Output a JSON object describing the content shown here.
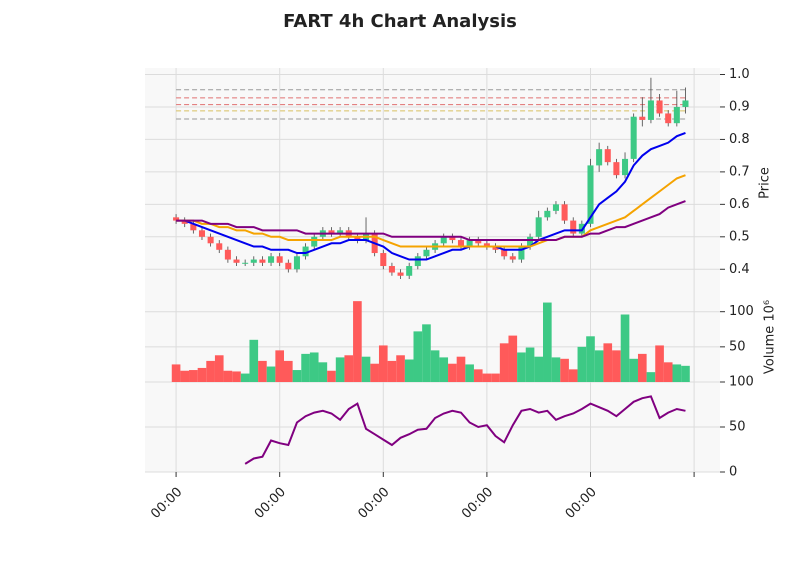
{
  "chart_data": {
    "type": "candlestick",
    "title": "FART 4h Chart Analysis",
    "xticks": [
      {
        "value": 0,
        "label": "00:00"
      },
      {
        "value": 12,
        "label": "00:00"
      },
      {
        "value": 24,
        "label": "00:00"
      },
      {
        "value": 36,
        "label": "00:00"
      },
      {
        "value": 48,
        "label": "00:00"
      },
      {
        "value": 60,
        "label": null
      }
    ],
    "xlim": [
      -3.6,
      63
    ],
    "ylabel": "Price",
    "ylim": [
      0.33,
      1.02
    ],
    "yticks": [
      0.4,
      0.5,
      0.6,
      0.7,
      0.8,
      0.9,
      {
        "value": 1,
        "label": "1.0"
      }
    ],
    "grid": true,
    "up_color": "#3dc985",
    "down_color": "#ff5a5a",
    "open": [
      0.56,
      0.55,
      0.54,
      0.52,
      0.5,
      0.48,
      0.46,
      0.43,
      0.42,
      0.42,
      0.43,
      0.42,
      0.44,
      0.42,
      0.4,
      0.44,
      0.47,
      0.5,
      0.52,
      0.51,
      0.52,
      0.5,
      0.49,
      0.51,
      0.45,
      0.41,
      0.39,
      0.38,
      0.41,
      0.44,
      0.46,
      0.48,
      0.5,
      0.49,
      0.47,
      0.49,
      0.48,
      0.47,
      0.46,
      0.44,
      0.43,
      0.47,
      0.5,
      0.56,
      0.58,
      0.6,
      0.55,
      0.51,
      0.54,
      0.72,
      0.77,
      0.73,
      0.69,
      0.74,
      0.87,
      0.86,
      0.92,
      0.88,
      0.85,
      0.9
    ],
    "high": [
      0.57,
      0.56,
      0.55,
      0.53,
      0.51,
      0.49,
      0.47,
      0.44,
      0.43,
      0.44,
      0.44,
      0.45,
      0.45,
      0.43,
      0.45,
      0.48,
      0.51,
      0.53,
      0.53,
      0.53,
      0.53,
      0.51,
      0.56,
      0.52,
      0.46,
      0.42,
      0.4,
      0.42,
      0.45,
      0.47,
      0.49,
      0.51,
      0.51,
      0.5,
      0.5,
      0.5,
      0.49,
      0.48,
      0.47,
      0.45,
      0.48,
      0.51,
      0.58,
      0.59,
      0.61,
      0.61,
      0.56,
      0.55,
      0.74,
      0.79,
      0.78,
      0.74,
      0.76,
      0.88,
      0.93,
      0.99,
      0.94,
      0.89,
      0.95,
      0.96
    ],
    "low": [
      0.54,
      0.53,
      0.51,
      0.49,
      0.47,
      0.45,
      0.42,
      0.41,
      0.41,
      0.41,
      0.41,
      0.41,
      0.41,
      0.39,
      0.39,
      0.43,
      0.46,
      0.49,
      0.5,
      0.5,
      0.49,
      0.48,
      0.48,
      0.44,
      0.4,
      0.38,
      0.37,
      0.37,
      0.4,
      0.43,
      0.45,
      0.47,
      0.48,
      0.46,
      0.46,
      0.47,
      0.46,
      0.45,
      0.43,
      0.42,
      0.42,
      0.46,
      0.49,
      0.55,
      0.57,
      0.54,
      0.5,
      0.5,
      0.53,
      0.7,
      0.72,
      0.68,
      0.68,
      0.73,
      0.84,
      0.85,
      0.87,
      0.84,
      0.84,
      0.88
    ],
    "close": [
      0.55,
      0.54,
      0.52,
      0.5,
      0.48,
      0.46,
      0.43,
      0.42,
      0.42,
      0.43,
      0.42,
      0.44,
      0.42,
      0.4,
      0.44,
      0.47,
      0.5,
      0.52,
      0.51,
      0.52,
      0.5,
      0.49,
      0.51,
      0.45,
      0.41,
      0.39,
      0.38,
      0.41,
      0.44,
      0.46,
      0.48,
      0.5,
      0.49,
      0.47,
      0.49,
      0.48,
      0.47,
      0.46,
      0.44,
      0.43,
      0.47,
      0.5,
      0.56,
      0.58,
      0.6,
      0.55,
      0.51,
      0.54,
      0.72,
      0.77,
      0.73,
      0.69,
      0.74,
      0.87,
      0.86,
      0.92,
      0.88,
      0.85,
      0.9,
      0.92
    ],
    "overlays": [
      {
        "color": "#0000ee",
        "values": [
          0.55,
          0.55,
          0.54,
          0.53,
          0.52,
          0.51,
          0.5,
          0.49,
          0.48,
          0.47,
          0.47,
          0.46,
          0.46,
          0.46,
          0.45,
          0.45,
          0.46,
          0.47,
          0.48,
          0.48,
          0.49,
          0.49,
          0.49,
          0.48,
          0.47,
          0.45,
          0.44,
          0.43,
          0.43,
          0.43,
          0.44,
          0.45,
          0.46,
          0.46,
          0.47,
          0.47,
          0.47,
          0.47,
          0.46,
          0.46,
          0.46,
          0.47,
          0.49,
          0.5,
          0.51,
          0.52,
          0.52,
          0.52,
          0.56,
          0.6,
          0.62,
          0.64,
          0.67,
          0.72,
          0.75,
          0.77,
          0.78,
          0.79,
          0.81,
          0.82
        ]
      },
      {
        "color": "#f5a300",
        "values": [
          0.55,
          0.55,
          0.55,
          0.54,
          0.54,
          0.53,
          0.53,
          0.52,
          0.52,
          0.51,
          0.51,
          0.5,
          0.5,
          0.49,
          0.49,
          0.49,
          0.49,
          0.49,
          0.49,
          0.5,
          0.5,
          0.5,
          0.5,
          0.5,
          0.49,
          0.48,
          0.47,
          0.47,
          0.47,
          0.47,
          0.47,
          0.47,
          0.47,
          0.47,
          0.47,
          0.47,
          0.47,
          0.47,
          0.47,
          0.47,
          0.47,
          0.47,
          0.48,
          0.49,
          0.49,
          0.5,
          0.5,
          0.5,
          0.52,
          0.53,
          0.54,
          0.55,
          0.56,
          0.58,
          0.6,
          0.62,
          0.64,
          0.66,
          0.68,
          0.69
        ]
      },
      {
        "color": "#800080",
        "values": [
          0.55,
          0.55,
          0.55,
          0.55,
          0.54,
          0.54,
          0.54,
          0.53,
          0.53,
          0.53,
          0.52,
          0.52,
          0.52,
          0.52,
          0.52,
          0.51,
          0.51,
          0.51,
          0.51,
          0.51,
          0.51,
          0.51,
          0.51,
          0.51,
          0.51,
          0.5,
          0.5,
          0.5,
          0.5,
          0.5,
          0.5,
          0.5,
          0.5,
          0.5,
          0.49,
          0.49,
          0.49,
          0.49,
          0.49,
          0.49,
          0.49,
          0.49,
          0.49,
          0.49,
          0.49,
          0.5,
          0.5,
          0.5,
          0.51,
          0.51,
          0.52,
          0.53,
          0.53,
          0.54,
          0.55,
          0.56,
          0.57,
          0.59,
          0.6,
          0.61
        ]
      }
    ],
    "hlines": [
      {
        "value": 0.953,
        "color": "#999999"
      },
      {
        "value": 0.928,
        "color": "#e07070"
      },
      {
        "value": 0.907,
        "color": "#e07070"
      },
      {
        "value": 0.888,
        "color": "#d8c060"
      },
      {
        "value": 0.863,
        "color": "#999999"
      }
    ],
    "volume": {
      "ylabel": "Volume  10⁶",
      "ylim": [
        0,
        128
      ],
      "yticks": [
        50,
        100
      ],
      "values": [
        25,
        16,
        17,
        20,
        30,
        38,
        16,
        15,
        12,
        60,
        30,
        22,
        45,
        30,
        17,
        40,
        42,
        28,
        16,
        35,
        38,
        115,
        36,
        26,
        52,
        30,
        38,
        32,
        72,
        82,
        45,
        35,
        26,
        36,
        25,
        18,
        12,
        12,
        55,
        66,
        42,
        49,
        36,
        113,
        35,
        33,
        18,
        50,
        65,
        45,
        55,
        45,
        96,
        33,
        40,
        14,
        52,
        28,
        25,
        23
      ]
    },
    "rsi": {
      "color": "#800080",
      "ylim": [
        0,
        100
      ],
      "yticks": [
        0,
        50,
        100
      ],
      "values": [
        null,
        null,
        null,
        null,
        null,
        null,
        null,
        null,
        9,
        15,
        17,
        35,
        32,
        30,
        55,
        62,
        66,
        68,
        65,
        58,
        70,
        76,
        48,
        42,
        36,
        30,
        38,
        42,
        47,
        48,
        60,
        65,
        68,
        66,
        55,
        50,
        52,
        40,
        33,
        52,
        68,
        70,
        66,
        68,
        58,
        62,
        65,
        70,
        76,
        72,
        68,
        62,
        70,
        78,
        82,
        84,
        60,
        66,
        70,
        68
      ]
    }
  }
}
